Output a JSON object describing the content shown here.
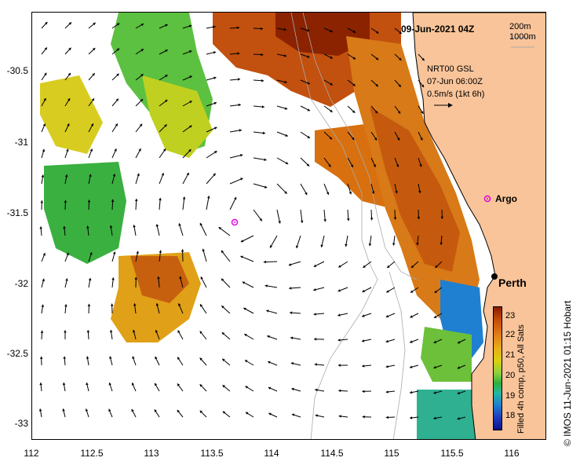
{
  "title": "09-Jun-2021 04Z",
  "bathymetry_legend": [
    "200m",
    "1000m"
  ],
  "vector_info": {
    "line1": "NRT00 GSL",
    "line2": "07-Jun 06:00Z",
    "line3": "0.5m/s (1kt 6h)"
  },
  "places": {
    "argo": "Argo",
    "perth": "Perth"
  },
  "colorbar": {
    "label": "Filled 4h comp, p50, All Sats",
    "ticks": [
      "23",
      "22",
      "21",
      "20",
      "19",
      "18"
    ]
  },
  "credit": "© IMOS 11-Jun-2021 01:15 Hobart",
  "axes": {
    "x_ticks": [
      "112",
      "112.5",
      "113",
      "113.5",
      "114",
      "114.5",
      "115",
      "115.5",
      "116"
    ],
    "y_ticks": [
      "-30.5",
      "-31",
      "-31.5",
      "-32",
      "-32.5",
      "-33"
    ]
  },
  "colors": {
    "land": "#f9c49a",
    "coast": "#000000",
    "argo_marker": "#e000e0",
    "sst_hot": "#8b1a00",
    "sst_cold": "#10108a"
  }
}
